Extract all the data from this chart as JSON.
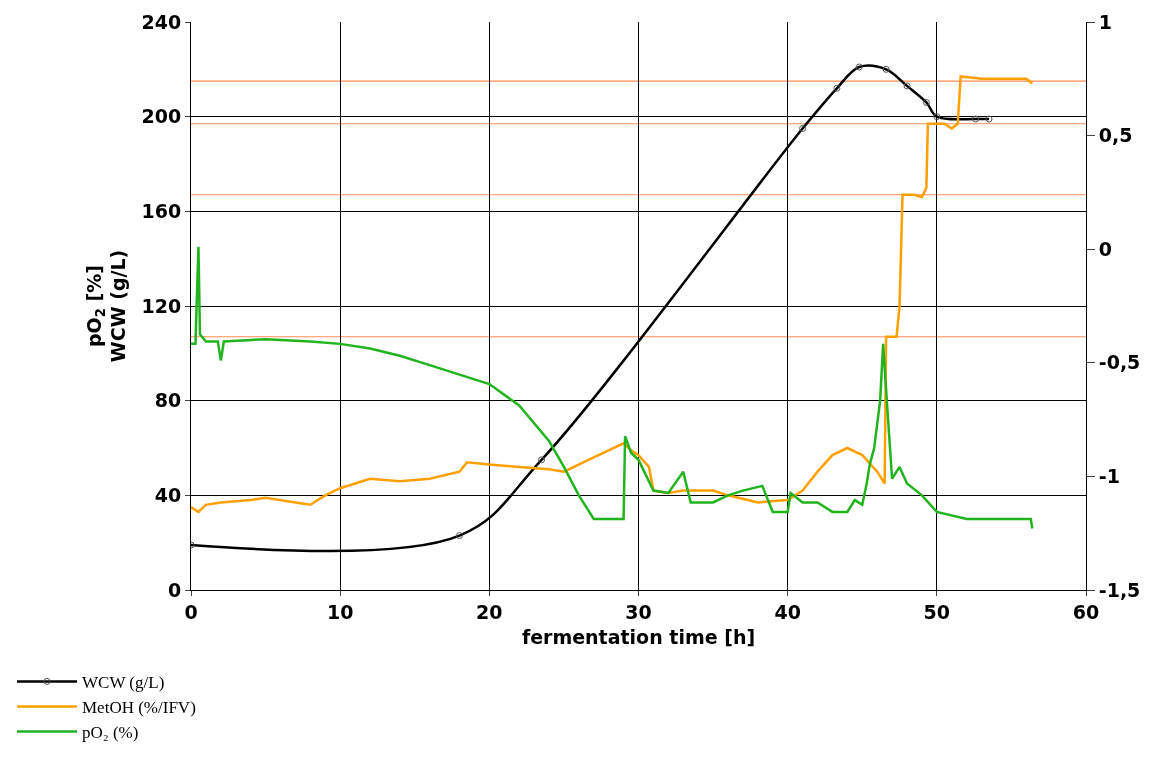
{
  "chart_data": {
    "type": "line",
    "xlabel": "fermentation time [h]",
    "ylabel": "pO$_{2}$ [%]\nWCW (g/L)",
    "xlim": [
      0,
      60
    ],
    "xticks": [
      0,
      10,
      20,
      30,
      40,
      50,
      60
    ],
    "ylim": [
      0,
      240
    ],
    "yticks": [
      0,
      40,
      80,
      120,
      160,
      200,
      240
    ],
    "y2lim": [
      -1.5,
      1
    ],
    "y2ticks": [
      {
        "value": -1.5,
        "label": "-1,5"
      },
      -1,
      {
        "value": -0.5,
        "label": "-0,5"
      },
      0,
      {
        "value": 0.5,
        "label": "0,5"
      },
      1
    ],
    "grid": true,
    "legend": "bottom left",
    "ref_lines": [
      {
        "axis": "y",
        "value": 215,
        "color": "#ff8c50"
      },
      {
        "axis": "y",
        "value": 197,
        "color": "#ff8c50"
      },
      {
        "axis": "y",
        "value": 167,
        "color": "#ff8c50"
      },
      {
        "axis": "y",
        "value": 107,
        "color": "#ff8c50"
      }
    ],
    "series": [
      {
        "name": "WCW (g/L)",
        "color": "#000000",
        "marker": "circle",
        "x": [
          0,
          18,
          23.5,
          41,
          43.3,
          44.8,
          46.6,
          48,
          49.3,
          50,
          52.6,
          53.5
        ],
        "values": [
          19,
          23,
          55,
          195,
          212,
          221,
          220,
          213,
          206,
          200,
          199,
          199
        ]
      },
      {
        "name": "MetOH (%/IFV)",
        "color": "#ffa000",
        "marker": "none",
        "x": [
          0,
          0.5,
          1,
          2,
          4,
          5,
          7,
          8,
          9,
          10,
          12,
          14,
          16,
          18,
          18.5,
          20,
          22,
          24,
          25,
          27,
          29,
          29.5,
          30,
          30.7,
          31,
          32,
          33,
          35,
          36,
          38,
          40,
          41,
          42,
          43,
          44,
          45,
          46,
          46.5,
          46.6,
          47.3,
          47.5,
          47.7,
          48.5,
          49,
          49.3,
          49.4,
          50.5,
          51,
          51.4,
          51.6,
          53,
          55,
          56,
          56.4
        ],
        "values": [
          35,
          33,
          36,
          37,
          38,
          39,
          37,
          36,
          40,
          43,
          47,
          46,
          47,
          50,
          54,
          53,
          52,
          51,
          50,
          56,
          62,
          59,
          57,
          52,
          42,
          41,
          42,
          42,
          40,
          37,
          38,
          42,
          50,
          57,
          60,
          57,
          50,
          45,
          107,
          107,
          120,
          167,
          167,
          166,
          170,
          197,
          197,
          195,
          197,
          217,
          216,
          216,
          216,
          214
        ]
      },
      {
        "name": "pO₂ (%)",
        "color": "#22b41e",
        "marker": "none",
        "x": [
          0,
          0.3,
          0.4,
          0.5,
          0.6,
          1,
          1.8,
          2,
          2.2,
          5,
          8,
          10,
          12,
          14,
          16,
          18,
          20,
          22,
          24,
          25,
          26,
          27,
          28,
          29,
          29.1,
          29.5,
          30,
          31,
          32,
          33,
          33.5,
          35,
          36,
          37,
          38.3,
          39,
          40,
          40.2,
          41,
          42,
          43,
          44,
          44.5,
          45,
          45.3,
          45.5,
          45.8,
          46.2,
          46.4,
          46.7,
          47,
          47.5,
          48,
          49,
          50,
          52,
          54,
          56.3,
          56.4
        ],
        "values": [
          104,
          104,
          125,
          145,
          108,
          105,
          105,
          97,
          105,
          106,
          105,
          104,
          102,
          99,
          95,
          91,
          87,
          78,
          63,
          52,
          40,
          30,
          30,
          30,
          65,
          58,
          55,
          42,
          41,
          50,
          37,
          37,
          40,
          42,
          44,
          33,
          33,
          41,
          37,
          37,
          33,
          33,
          38,
          36,
          45,
          53,
          60,
          80,
          104,
          75,
          47,
          52,
          45,
          40,
          33,
          30,
          30,
          30,
          26
        ]
      }
    ]
  }
}
